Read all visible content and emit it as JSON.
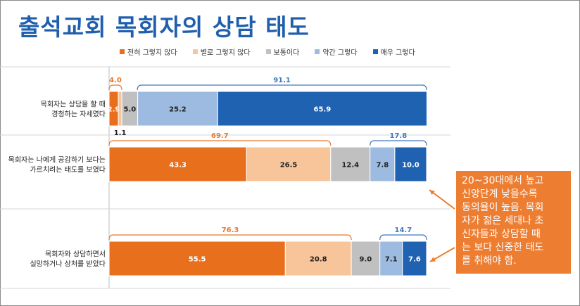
{
  "title": "출석교회 목회자의 상담 태도",
  "chart_data": {
    "type": "bar",
    "orientation": "horizontal",
    "stacked": true,
    "title": "출석교회 목회자의 상담 태도",
    "xlim": [
      0,
      100
    ],
    "categories": [
      "목회자는 상담을 할 때 경청하는 자세였다",
      "목회자는 나에게 공감하기 보다는 가르치려는 태도를 보였다",
      "목회자와 상담하면서 실망하거나 상처를 받았다"
    ],
    "category_lines": [
      [
        "목회자는 상담을 할 때",
        "경청하는 자세였다"
      ],
      [
        "목회자는 나에게 공감하기 보다는",
        "가르치려는 태도를 보였다"
      ],
      [
        "목회자와 상담하면서",
        "실망하거나 상처를 받았다"
      ]
    ],
    "series": [
      {
        "name": "전혀 그렇지 않다",
        "color": "#e86f1c",
        "values": [
          2.9,
          43.3,
          55.5
        ],
        "labels": [
          "2.9",
          "43.3",
          "55.5"
        ]
      },
      {
        "name": "별로 그렇지 않다",
        "color": "#f8c59a",
        "values": [
          1.1,
          26.5,
          20.8
        ],
        "labels": [
          "1.1",
          "26.5",
          "20.8"
        ]
      },
      {
        "name": "보통이다",
        "color": "#c0c0c0",
        "values": [
          5.0,
          12.4,
          9.0
        ],
        "labels": [
          "5.0",
          "12.4",
          "9.0"
        ]
      },
      {
        "name": "약간 그렇다",
        "color": "#9dbbe0",
        "values": [
          25.2,
          7.8,
          7.1
        ],
        "labels": [
          "25.2",
          "7.8",
          "7.1"
        ]
      },
      {
        "name": "매우 그렇다",
        "color": "#1f62b2",
        "values": [
          65.9,
          10.0,
          7.6
        ],
        "labels": [
          "65.9",
          "10.0",
          "7.6"
        ]
      }
    ],
    "brackets": [
      {
        "row": 0,
        "from": 0,
        "to": 4.0,
        "label": "4.0",
        "color": "#e8782a"
      },
      {
        "row": 0,
        "from": 8.9,
        "to": 100,
        "label": "91.1",
        "color": "#3f78c0"
      },
      {
        "row": 1,
        "from": 0,
        "to": 69.8,
        "label": "69.7",
        "color": "#e8782a"
      },
      {
        "row": 1,
        "from": 82.2,
        "to": 100,
        "label": "17.8",
        "color": "#3f78c0"
      },
      {
        "row": 2,
        "from": 0,
        "to": 76.3,
        "label": "76.3",
        "color": "#e8782a"
      },
      {
        "row": 2,
        "from": 85.3,
        "to": 100,
        "label": "14.7",
        "color": "#3f78c0"
      }
    ]
  },
  "callout": {
    "text": "20~30대에서 높고\n신앙단계 낮을수록\n동의율이 높음. 목회\n자가 젊은 세대나 초\n신자들과 상담할 때\n는 보다 신중한 태도\n를 취해야 함.",
    "color": "#ed7d31"
  }
}
